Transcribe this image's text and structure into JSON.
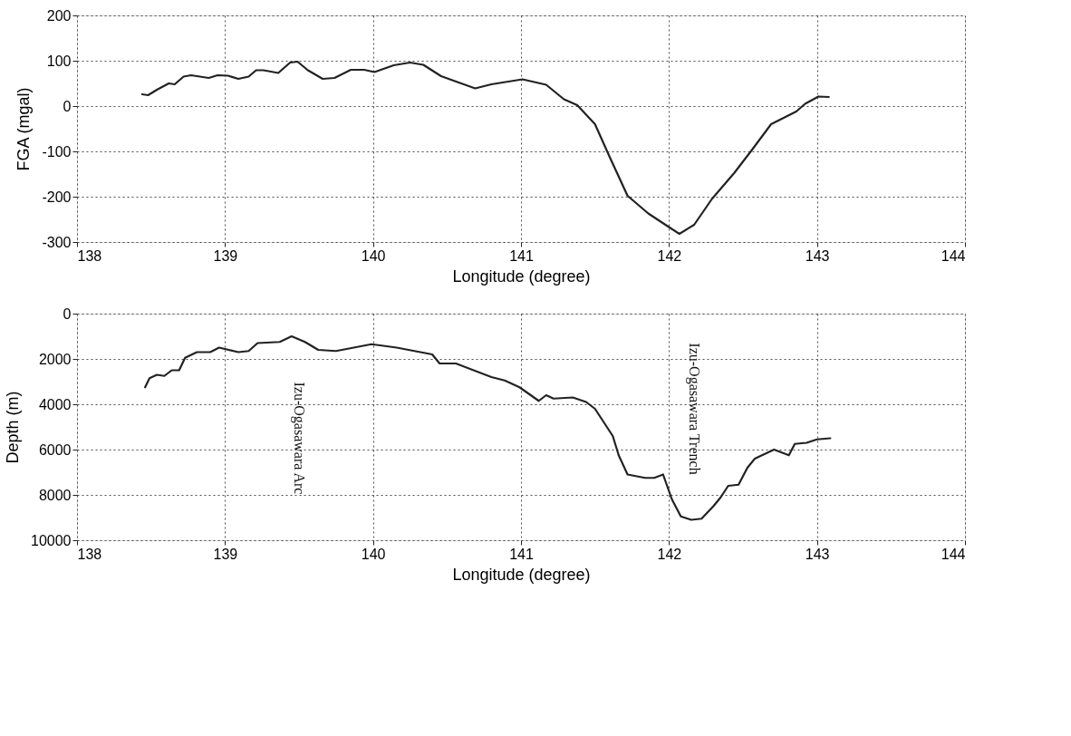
{
  "chart_data": [
    {
      "type": "line",
      "xlabel": "Longitude (degree)",
      "ylabel": "FGA (mgal)",
      "xlim": [
        138,
        144
      ],
      "xticks": [
        138,
        139,
        140,
        141,
        142,
        143,
        144
      ],
      "ylim": [
        -300,
        200
      ],
      "yticks": [
        -300,
        -200,
        -100,
        0,
        100,
        200
      ],
      "grid": true,
      "series": [
        {
          "color": "#222222",
          "x": [
            138.44,
            138.48,
            138.54,
            138.62,
            138.66,
            138.72,
            138.77,
            138.89,
            138.95,
            139.02,
            139.09,
            139.16,
            139.21,
            139.26,
            139.36,
            139.44,
            139.49,
            139.56,
            139.66,
            139.74,
            139.85,
            139.94,
            140.01,
            140.14,
            140.25,
            140.34,
            140.46,
            140.57,
            140.69,
            140.8,
            141.01,
            141.17,
            141.29,
            141.38,
            141.5,
            141.6,
            141.72,
            141.86,
            141.99,
            142.07,
            142.17,
            142.29,
            142.44,
            142.56,
            142.69,
            142.86,
            142.92,
            143.01,
            143.08
          ],
          "values": [
            26,
            24,
            36,
            50,
            48,
            65,
            68,
            62,
            68,
            67,
            60,
            65,
            79,
            79,
            73,
            96,
            98,
            79,
            60,
            62,
            80,
            80,
            75,
            90,
            96,
            91,
            66,
            53,
            39,
            48,
            59,
            47,
            15,
            2,
            -40,
            -113,
            -198,
            -237,
            -265,
            -282,
            -262,
            -205,
            -148,
            -97,
            -40,
            -12,
            5,
            21,
            20
          ]
        }
      ]
    },
    {
      "type": "line",
      "xlabel": "Longitude (degree)",
      "ylabel": "Depth (m)",
      "xlim": [
        138,
        144
      ],
      "xticks": [
        138,
        139,
        140,
        141,
        142,
        143,
        144
      ],
      "ylim": [
        10000,
        0
      ],
      "yticks": [
        0,
        2000,
        4000,
        6000,
        8000,
        10000
      ],
      "grid": true,
      "annotations": [
        "Izu-Ogasawara Arc",
        "Izu-Ogasawara Trench"
      ],
      "series": [
        {
          "color": "#222222",
          "x": [
            138.46,
            138.49,
            138.54,
            138.59,
            138.64,
            138.69,
            138.73,
            138.81,
            138.9,
            138.96,
            139.09,
            139.16,
            139.22,
            139.37,
            139.45,
            139.54,
            139.63,
            139.75,
            139.99,
            140.16,
            140.4,
            140.45,
            140.56,
            140.8,
            140.89,
            140.99,
            141.12,
            141.17,
            141.22,
            141.35,
            141.44,
            141.5,
            141.62,
            141.66,
            141.72,
            141.84,
            141.9,
            141.96,
            142.02,
            142.08,
            142.15,
            142.22,
            142.3,
            142.35,
            142.4,
            142.47,
            142.53,
            142.58,
            142.71,
            142.81,
            142.85,
            142.93,
            143.0,
            143.09
          ],
          "values": [
            3250,
            2850,
            2700,
            2750,
            2500,
            2500,
            1950,
            1700,
            1700,
            1500,
            1700,
            1650,
            1300,
            1250,
            1000,
            1250,
            1600,
            1650,
            1350,
            1500,
            1800,
            2200,
            2200,
            2800,
            2950,
            3250,
            3850,
            3600,
            3750,
            3700,
            3900,
            4200,
            5400,
            6250,
            7100,
            7250,
            7250,
            7100,
            8200,
            8950,
            9100,
            9050,
            8500,
            8100,
            7600,
            7550,
            6800,
            6400,
            6000,
            6250,
            5750,
            5700,
            5550,
            5500
          ]
        }
      ]
    }
  ]
}
